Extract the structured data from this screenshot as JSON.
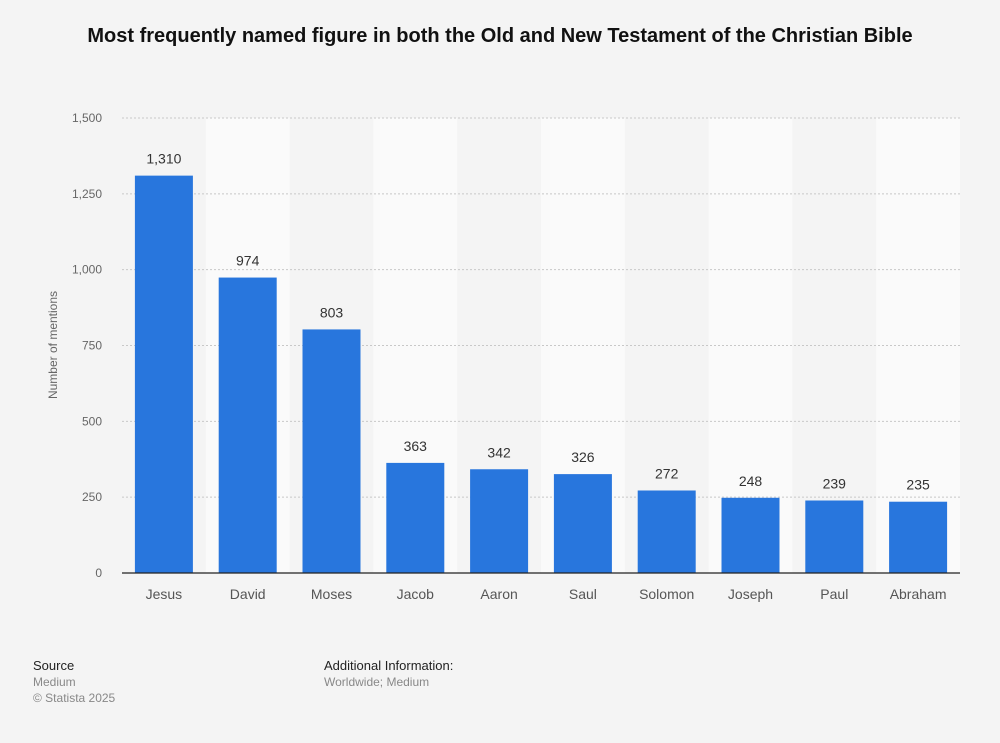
{
  "chart_data": {
    "type": "bar",
    "title": "Most frequently named figure in both the Old and New Testament of the Christian Bible",
    "xlabel": "",
    "ylabel": "Number of mentions",
    "categories": [
      "Jesus",
      "David",
      "Moses",
      "Jacob",
      "Aaron",
      "Saul",
      "Solomon",
      "Joseph",
      "Paul",
      "Abraham"
    ],
    "values": [
      1310,
      974,
      803,
      363,
      342,
      326,
      272,
      248,
      239,
      235
    ],
    "value_labels": [
      "1,310",
      "974",
      "803",
      "363",
      "342",
      "326",
      "272",
      "248",
      "239",
      "235"
    ],
    "ylim": [
      0,
      1500
    ],
    "yticks": [
      0,
      250,
      500,
      750,
      1000,
      1250,
      1500
    ],
    "ytick_labels": [
      "0",
      "250",
      "500",
      "750",
      "1,000",
      "1,250",
      "1,500"
    ],
    "grid": true,
    "bar_color": "#2876dd"
  },
  "footer": {
    "source_heading": "Source",
    "source_lines": [
      "Medium",
      "© Statista 2025"
    ],
    "info_heading": "Additional Information:",
    "info_text": "Worldwide; Medium"
  }
}
